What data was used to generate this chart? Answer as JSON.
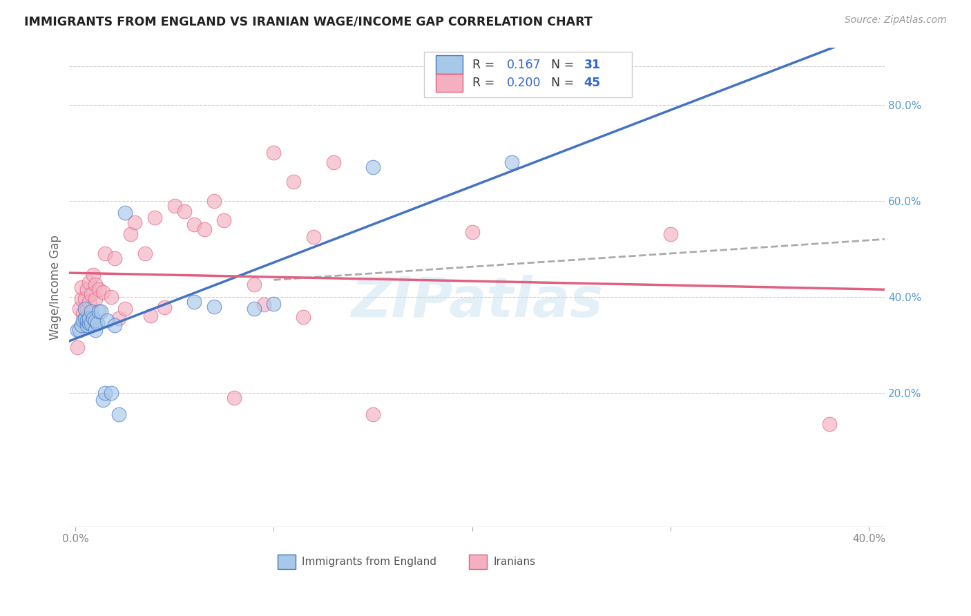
{
  "title": "IMMIGRANTS FROM ENGLAND VS IRANIAN WAGE/INCOME GAP CORRELATION CHART",
  "source": "Source: ZipAtlas.com",
  "ylabel": "Wage/Income Gap",
  "right_yticks": [
    "80.0%",
    "60.0%",
    "40.0%",
    "20.0%"
  ],
  "right_ytick_vals": [
    0.8,
    0.6,
    0.4,
    0.2
  ],
  "xlim": [
    -0.003,
    0.408
  ],
  "ylim": [
    -0.08,
    0.92
  ],
  "england_color": "#a8c8e8",
  "england_line_color": "#4472c4",
  "iranian_color": "#f4b0c0",
  "iranian_line_color": "#e06080",
  "england_R": 0.167,
  "england_N": 31,
  "iranian_R": 0.2,
  "iranian_N": 45,
  "watermark": "ZIPatlas",
  "england_points_x": [
    0.001,
    0.002,
    0.003,
    0.004,
    0.005,
    0.005,
    0.006,
    0.006,
    0.007,
    0.007,
    0.008,
    0.008,
    0.009,
    0.01,
    0.01,
    0.011,
    0.012,
    0.013,
    0.014,
    0.015,
    0.016,
    0.018,
    0.02,
    0.022,
    0.025,
    0.06,
    0.07,
    0.09,
    0.1,
    0.15,
    0.22
  ],
  "england_points_y": [
    0.33,
    0.33,
    0.34,
    0.35,
    0.355,
    0.375,
    0.34,
    0.35,
    0.345,
    0.355,
    0.345,
    0.37,
    0.355,
    0.33,
    0.35,
    0.345,
    0.37,
    0.37,
    0.185,
    0.2,
    0.35,
    0.2,
    0.34,
    0.155,
    0.575,
    0.39,
    0.38,
    0.375,
    0.385,
    0.67,
    0.68
  ],
  "iranian_points_x": [
    0.001,
    0.002,
    0.003,
    0.003,
    0.004,
    0.005,
    0.006,
    0.006,
    0.007,
    0.007,
    0.008,
    0.009,
    0.01,
    0.01,
    0.012,
    0.014,
    0.015,
    0.018,
    0.02,
    0.022,
    0.025,
    0.028,
    0.03,
    0.035,
    0.038,
    0.04,
    0.045,
    0.05,
    0.055,
    0.06,
    0.065,
    0.07,
    0.075,
    0.08,
    0.09,
    0.095,
    0.1,
    0.11,
    0.115,
    0.12,
    0.13,
    0.15,
    0.2,
    0.3,
    0.38
  ],
  "iranian_points_y": [
    0.295,
    0.375,
    0.395,
    0.42,
    0.365,
    0.395,
    0.375,
    0.415,
    0.39,
    0.43,
    0.405,
    0.445,
    0.395,
    0.425,
    0.415,
    0.41,
    0.49,
    0.4,
    0.48,
    0.355,
    0.375,
    0.53,
    0.555,
    0.49,
    0.36,
    0.565,
    0.378,
    0.59,
    0.578,
    0.55,
    0.54,
    0.6,
    0.56,
    0.19,
    0.425,
    0.383,
    0.7,
    0.64,
    0.358,
    0.525,
    0.68,
    0.155,
    0.535,
    0.53,
    0.135
  ],
  "dashed_line_x": [
    0.1,
    0.408
  ],
  "dashed_line_y": [
    0.435,
    0.52
  ]
}
